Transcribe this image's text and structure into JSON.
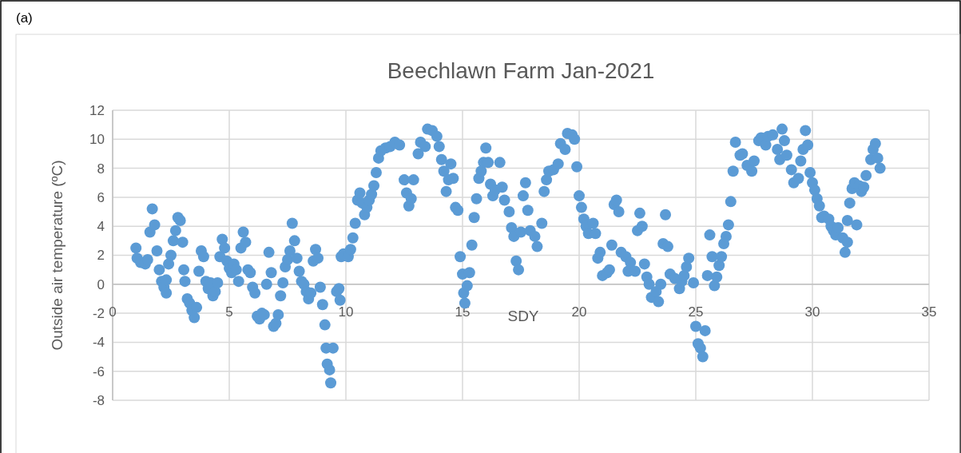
{
  "chart_data": {
    "type": "scatter",
    "title": "Beechlawn Farm Jan-2021",
    "xlabel": "SDY",
    "ylabel": "Outside air temperature (ºC)",
    "annotations": [
      "(a)"
    ],
    "xlim": [
      0,
      35
    ],
    "xticks": [
      0,
      5,
      10,
      15,
      20,
      25,
      30,
      35
    ],
    "ylim": [
      -8,
      12
    ],
    "yticks": [
      -8,
      -6,
      -4,
      -2,
      0,
      2,
      4,
      6,
      8,
      10,
      12
    ],
    "grid": true,
    "marker": "circle",
    "series": [
      {
        "color": "#5b9bd5",
        "x": [
          1.0,
          1.05,
          1.2,
          1.4,
          1.5,
          1.6,
          1.7,
          1.8,
          1.9,
          2.0,
          2.1,
          2.2,
          2.3,
          2.3,
          2.4,
          2.5,
          2.6,
          2.7,
          2.8,
          2.9,
          3.0,
          3.05,
          3.1,
          3.2,
          3.3,
          3.4,
          3.5,
          3.6,
          3.7,
          3.8,
          3.9,
          4.0,
          4.1,
          4.2,
          4.3,
          4.4,
          4.5,
          4.6,
          4.7,
          4.8,
          4.9,
          5.0,
          5.1,
          5.2,
          5.3,
          5.4,
          5.5,
          5.6,
          5.7,
          5.8,
          5.9,
          6.0,
          6.1,
          6.2,
          6.3,
          6.4,
          6.5,
          6.6,
          6.7,
          6.8,
          6.9,
          7.0,
          7.1,
          7.2,
          7.3,
          7.4,
          7.5,
          7.6,
          7.7,
          7.8,
          7.9,
          8.0,
          8.1,
          8.2,
          8.3,
          8.4,
          8.5,
          8.6,
          8.7,
          8.8,
          8.9,
          9.0,
          9.1,
          9.15,
          9.2,
          9.3,
          9.35,
          9.45,
          9.6,
          9.7,
          9.75,
          9.8,
          9.9,
          10.1,
          10.2,
          10.3,
          10.4,
          10.5,
          10.6,
          10.7,
          10.8,
          10.9,
          11.0,
          11.1,
          11.2,
          11.3,
          11.4,
          11.5,
          11.7,
          11.9,
          12.1,
          12.3,
          12.5,
          12.6,
          12.7,
          12.8,
          12.9,
          13.1,
          13.2,
          13.4,
          13.5,
          13.7,
          13.9,
          14.0,
          14.1,
          14.2,
          14.3,
          14.4,
          14.5,
          14.6,
          14.7,
          14.8,
          14.9,
          15.0,
          15.05,
          15.1,
          15.2,
          15.3,
          15.4,
          15.5,
          15.6,
          15.7,
          15.8,
          15.9,
          16.0,
          16.1,
          16.2,
          16.3,
          16.4,
          16.6,
          16.7,
          16.8,
          17.0,
          17.1,
          17.2,
          17.3,
          17.4,
          17.5,
          17.6,
          17.7,
          17.8,
          17.9,
          18.1,
          18.2,
          18.4,
          18.5,
          18.6,
          18.7,
          18.9,
          19.1,
          19.2,
          19.4,
          19.5,
          19.7,
          19.8,
          19.9,
          20.0,
          20.1,
          20.2,
          20.3,
          20.4,
          20.6,
          20.7,
          20.8,
          20.9,
          21.0,
          21.2,
          21.3,
          21.4,
          21.5,
          21.6,
          21.7,
          21.8,
          22.0,
          22.1,
          22.2,
          22.4,
          22.5,
          22.6,
          22.7,
          22.8,
          22.9,
          23.0,
          23.1,
          23.3,
          23.4,
          23.5,
          23.6,
          23.7,
          23.8,
          23.9,
          24.1,
          24.3,
          24.4,
          24.5,
          24.6,
          24.7,
          24.9,
          25.0,
          25.1,
          25.2,
          25.3,
          25.4,
          25.5,
          25.6,
          25.7,
          25.8,
          25.9,
          26.0,
          26.1,
          26.2,
          26.3,
          26.4,
          26.5,
          26.6,
          26.7,
          26.9,
          27.0,
          27.2,
          27.4,
          27.5,
          27.7,
          27.8,
          28.0,
          28.1,
          28.3,
          28.5,
          28.6,
          28.7,
          28.8,
          28.9,
          29.1,
          29.2,
          29.4,
          29.5,
          29.6,
          29.7,
          29.8,
          29.9,
          30.0,
          30.1,
          30.2,
          30.3,
          30.4,
          30.5,
          30.7,
          30.8,
          30.9,
          31.0,
          31.1,
          31.3,
          31.4,
          31.5,
          31.5,
          31.6,
          31.7,
          31.8,
          31.9,
          32.0,
          32.1,
          32.2,
          32.3,
          32.5,
          32.6,
          32.7,
          32.8,
          32.9
        ],
        "values": [
          2.5,
          1.8,
          1.5,
          1.4,
          1.7,
          3.6,
          5.2,
          4.1,
          2.3,
          1.0,
          0.2,
          -0.2,
          -0.6,
          0.3,
          1.4,
          2.0,
          3.0,
          3.7,
          4.6,
          4.4,
          2.9,
          1.0,
          0.2,
          -1.0,
          -1.3,
          -1.8,
          -2.3,
          -1.6,
          0.9,
          2.3,
          1.9,
          0.2,
          -0.3,
          0.1,
          -0.8,
          -0.5,
          0.1,
          1.9,
          3.1,
          2.5,
          1.6,
          1.1,
          0.8,
          1.4,
          1.0,
          0.2,
          2.5,
          3.6,
          2.9,
          1.0,
          0.8,
          -0.2,
          -0.6,
          -2.2,
          -2.4,
          -2.0,
          -2.1,
          0.0,
          2.2,
          0.8,
          -2.9,
          -2.7,
          -2.1,
          -0.8,
          0.1,
          1.2,
          1.7,
          2.3,
          4.2,
          3.0,
          1.8,
          0.9,
          0.2,
          0.0,
          -0.5,
          -1.0,
          -0.6,
          1.6,
          2.4,
          1.8,
          -0.2,
          -1.4,
          -2.8,
          -4.4,
          -5.5,
          -5.9,
          -6.8,
          -4.4,
          -0.5,
          -0.3,
          -1.1,
          1.9,
          2.1,
          1.9,
          2.4,
          3.2,
          4.2,
          5.8,
          6.3,
          5.6,
          4.8,
          5.3,
          5.8,
          6.2,
          6.8,
          7.7,
          8.7,
          9.2,
          9.4,
          9.5,
          9.8,
          9.6,
          7.2,
          6.3,
          5.4,
          5.9,
          7.2,
          9.0,
          9.8,
          9.5,
          10.7,
          10.6,
          10.2,
          9.5,
          8.6,
          7.8,
          6.4,
          7.2,
          8.3,
          7.3,
          5.3,
          5.1,
          1.9,
          0.7,
          -0.6,
          -1.3,
          -0.1,
          0.8,
          2.7,
          4.6,
          5.9,
          7.3,
          7.8,
          8.4,
          9.4,
          8.4,
          6.9,
          6.1,
          6.5,
          8.4,
          6.7,
          5.8,
          5.0,
          3.9,
          3.3,
          1.6,
          1.0,
          3.6,
          6.1,
          7.0,
          5.1,
          3.7,
          3.3,
          2.6,
          4.2,
          6.4,
          7.2,
          7.8,
          7.9,
          8.3,
          9.7,
          9.3,
          10.4,
          10.3,
          10.0,
          8.1,
          6.1,
          5.3,
          4.5,
          4.0,
          3.5,
          4.2,
          3.5,
          1.8,
          2.2,
          0.6,
          0.8,
          1.0,
          2.7,
          5.5,
          5.8,
          5.0,
          2.2,
          1.9,
          0.9,
          1.5,
          0.9,
          3.7,
          4.9,
          4.0,
          1.4,
          0.5,
          0.0,
          -0.9,
          -0.5,
          -1.2,
          0.0,
          2.8,
          4.8,
          2.6,
          0.7,
          0.4,
          -0.3,
          0.2,
          0.6,
          1.2,
          1.8,
          0.1,
          -2.9,
          -4.1,
          -4.4,
          -5.0,
          -3.2,
          0.6,
          3.4,
          1.9,
          -0.1,
          0.5,
          1.3,
          1.9,
          2.8,
          3.3,
          4.1,
          5.7,
          7.8,
          9.8,
          8.9,
          9.0,
          8.2,
          7.8,
          8.5,
          9.9,
          10.1,
          9.6,
          10.2,
          10.3,
          9.3,
          8.6,
          10.7,
          9.9,
          8.9,
          7.9,
          7.0,
          7.3,
          8.5,
          9.3,
          10.6,
          9.6,
          7.7,
          7.0,
          6.5,
          5.9,
          5.4,
          4.6,
          4.7,
          4.5,
          4.0,
          3.7,
          3.4,
          3.9,
          3.2,
          2.2,
          2.9,
          4.4,
          5.6,
          6.6,
          7.0,
          4.1,
          6.8,
          6.4,
          6.7,
          7.5,
          8.6,
          9.3,
          9.7,
          8.7,
          8.0
        ]
      }
    ]
  }
}
